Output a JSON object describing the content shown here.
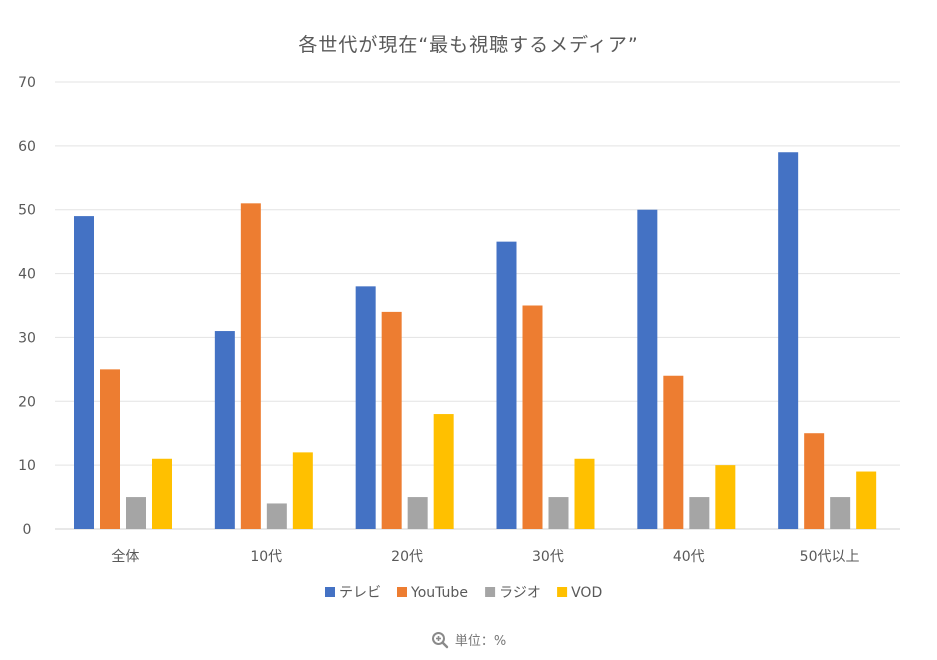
{
  "chart_data": {
    "type": "bar",
    "title": "各世代が現在“最も視聴するメディア”",
    "categories": [
      "全体",
      "10代",
      "20代",
      "30代",
      "40代",
      "50代以上"
    ],
    "series": [
      {
        "name": "テレビ",
        "color": "#4472C4",
        "values": [
          49,
          31,
          38,
          45,
          50,
          59
        ]
      },
      {
        "name": "YouTube",
        "color": "#ED7D31",
        "values": [
          25,
          51,
          34,
          35,
          24,
          15
        ]
      },
      {
        "name": "ラジオ",
        "color": "#A5A5A5",
        "values": [
          5,
          4,
          5,
          5,
          5,
          5
        ]
      },
      {
        "name": "VOD",
        "color": "#FFC000",
        "values": [
          11,
          12,
          18,
          11,
          10,
          9
        ]
      }
    ],
    "ylim": [
      0,
      70
    ],
    "yticks": [
      0,
      10,
      20,
      30,
      40,
      50,
      60,
      70
    ],
    "grid": true,
    "legend_position": "bottom",
    "xlabel": "",
    "ylabel": ""
  },
  "caption": {
    "icon": "zoom-in-icon",
    "text": "単位：%"
  }
}
